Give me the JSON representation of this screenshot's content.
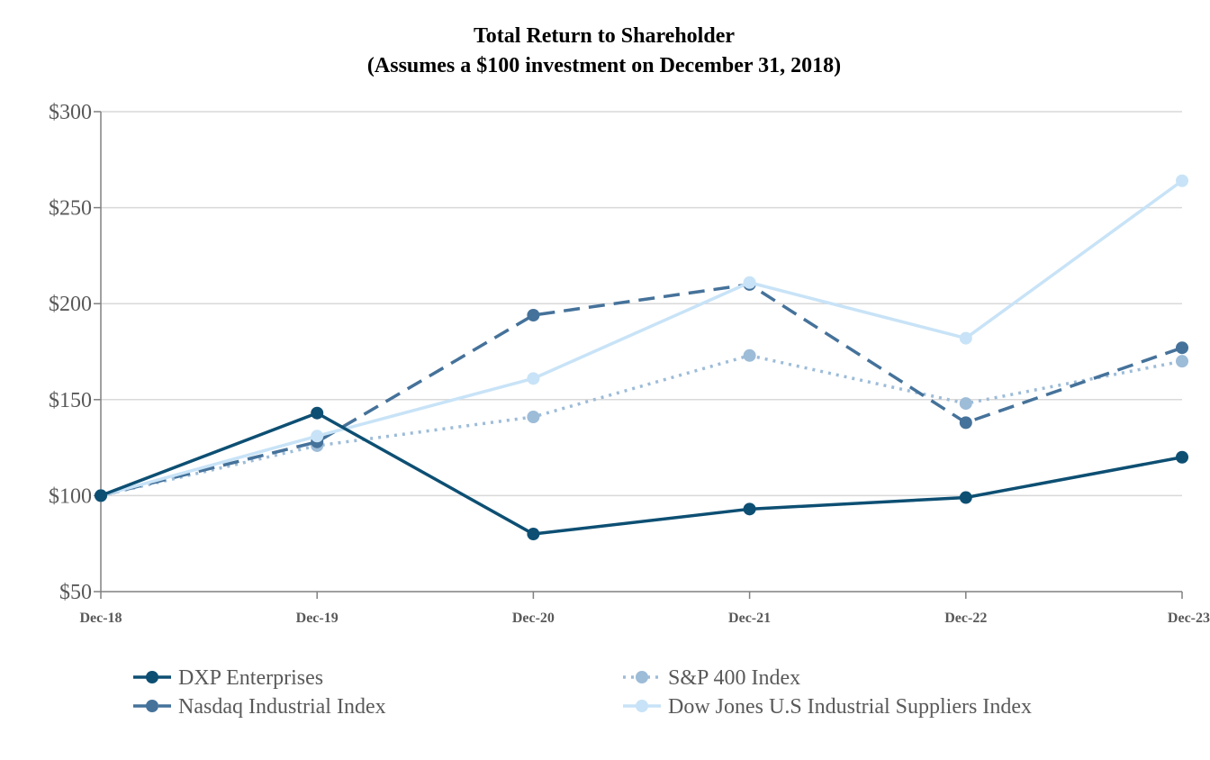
{
  "chart_data": {
    "type": "line",
    "title": "Total Return to Shareholder",
    "subtitle": "(Assumes a $100 investment on December 31, 2018)",
    "xlabel": "",
    "ylabel": "",
    "categories": [
      "Dec-18",
      "Dec-19",
      "Dec-20",
      "Dec-21",
      "Dec-22",
      "Dec-23"
    ],
    "ylim": [
      50,
      300
    ],
    "yticks": [
      50,
      100,
      150,
      200,
      250,
      300
    ],
    "ytick_labels": [
      "$50",
      "$100",
      "$150",
      "$200",
      "$250",
      "$300"
    ],
    "grid": true,
    "legend_position": "bottom",
    "series": [
      {
        "name": "DXP Enterprises",
        "values": [
          100,
          143,
          80,
          93,
          99,
          120
        ],
        "color": "#0d4f73",
        "dash": "solid"
      },
      {
        "name": "S&P 400 Index",
        "values": [
          100,
          126,
          141,
          173,
          148,
          170
        ],
        "color": "#9dbcd8",
        "dash": "dotted"
      },
      {
        "name": "Nasdaq Industrial Index",
        "values": [
          100,
          128,
          194,
          210,
          138,
          177
        ],
        "color": "#45729a",
        "dash": "dashed"
      },
      {
        "name": "Dow Jones U.S Industrial Suppliers Index",
        "values": [
          100,
          131,
          161,
          211,
          182,
          264
        ],
        "color": "#c8e3f7",
        "dash": "solid"
      }
    ]
  }
}
